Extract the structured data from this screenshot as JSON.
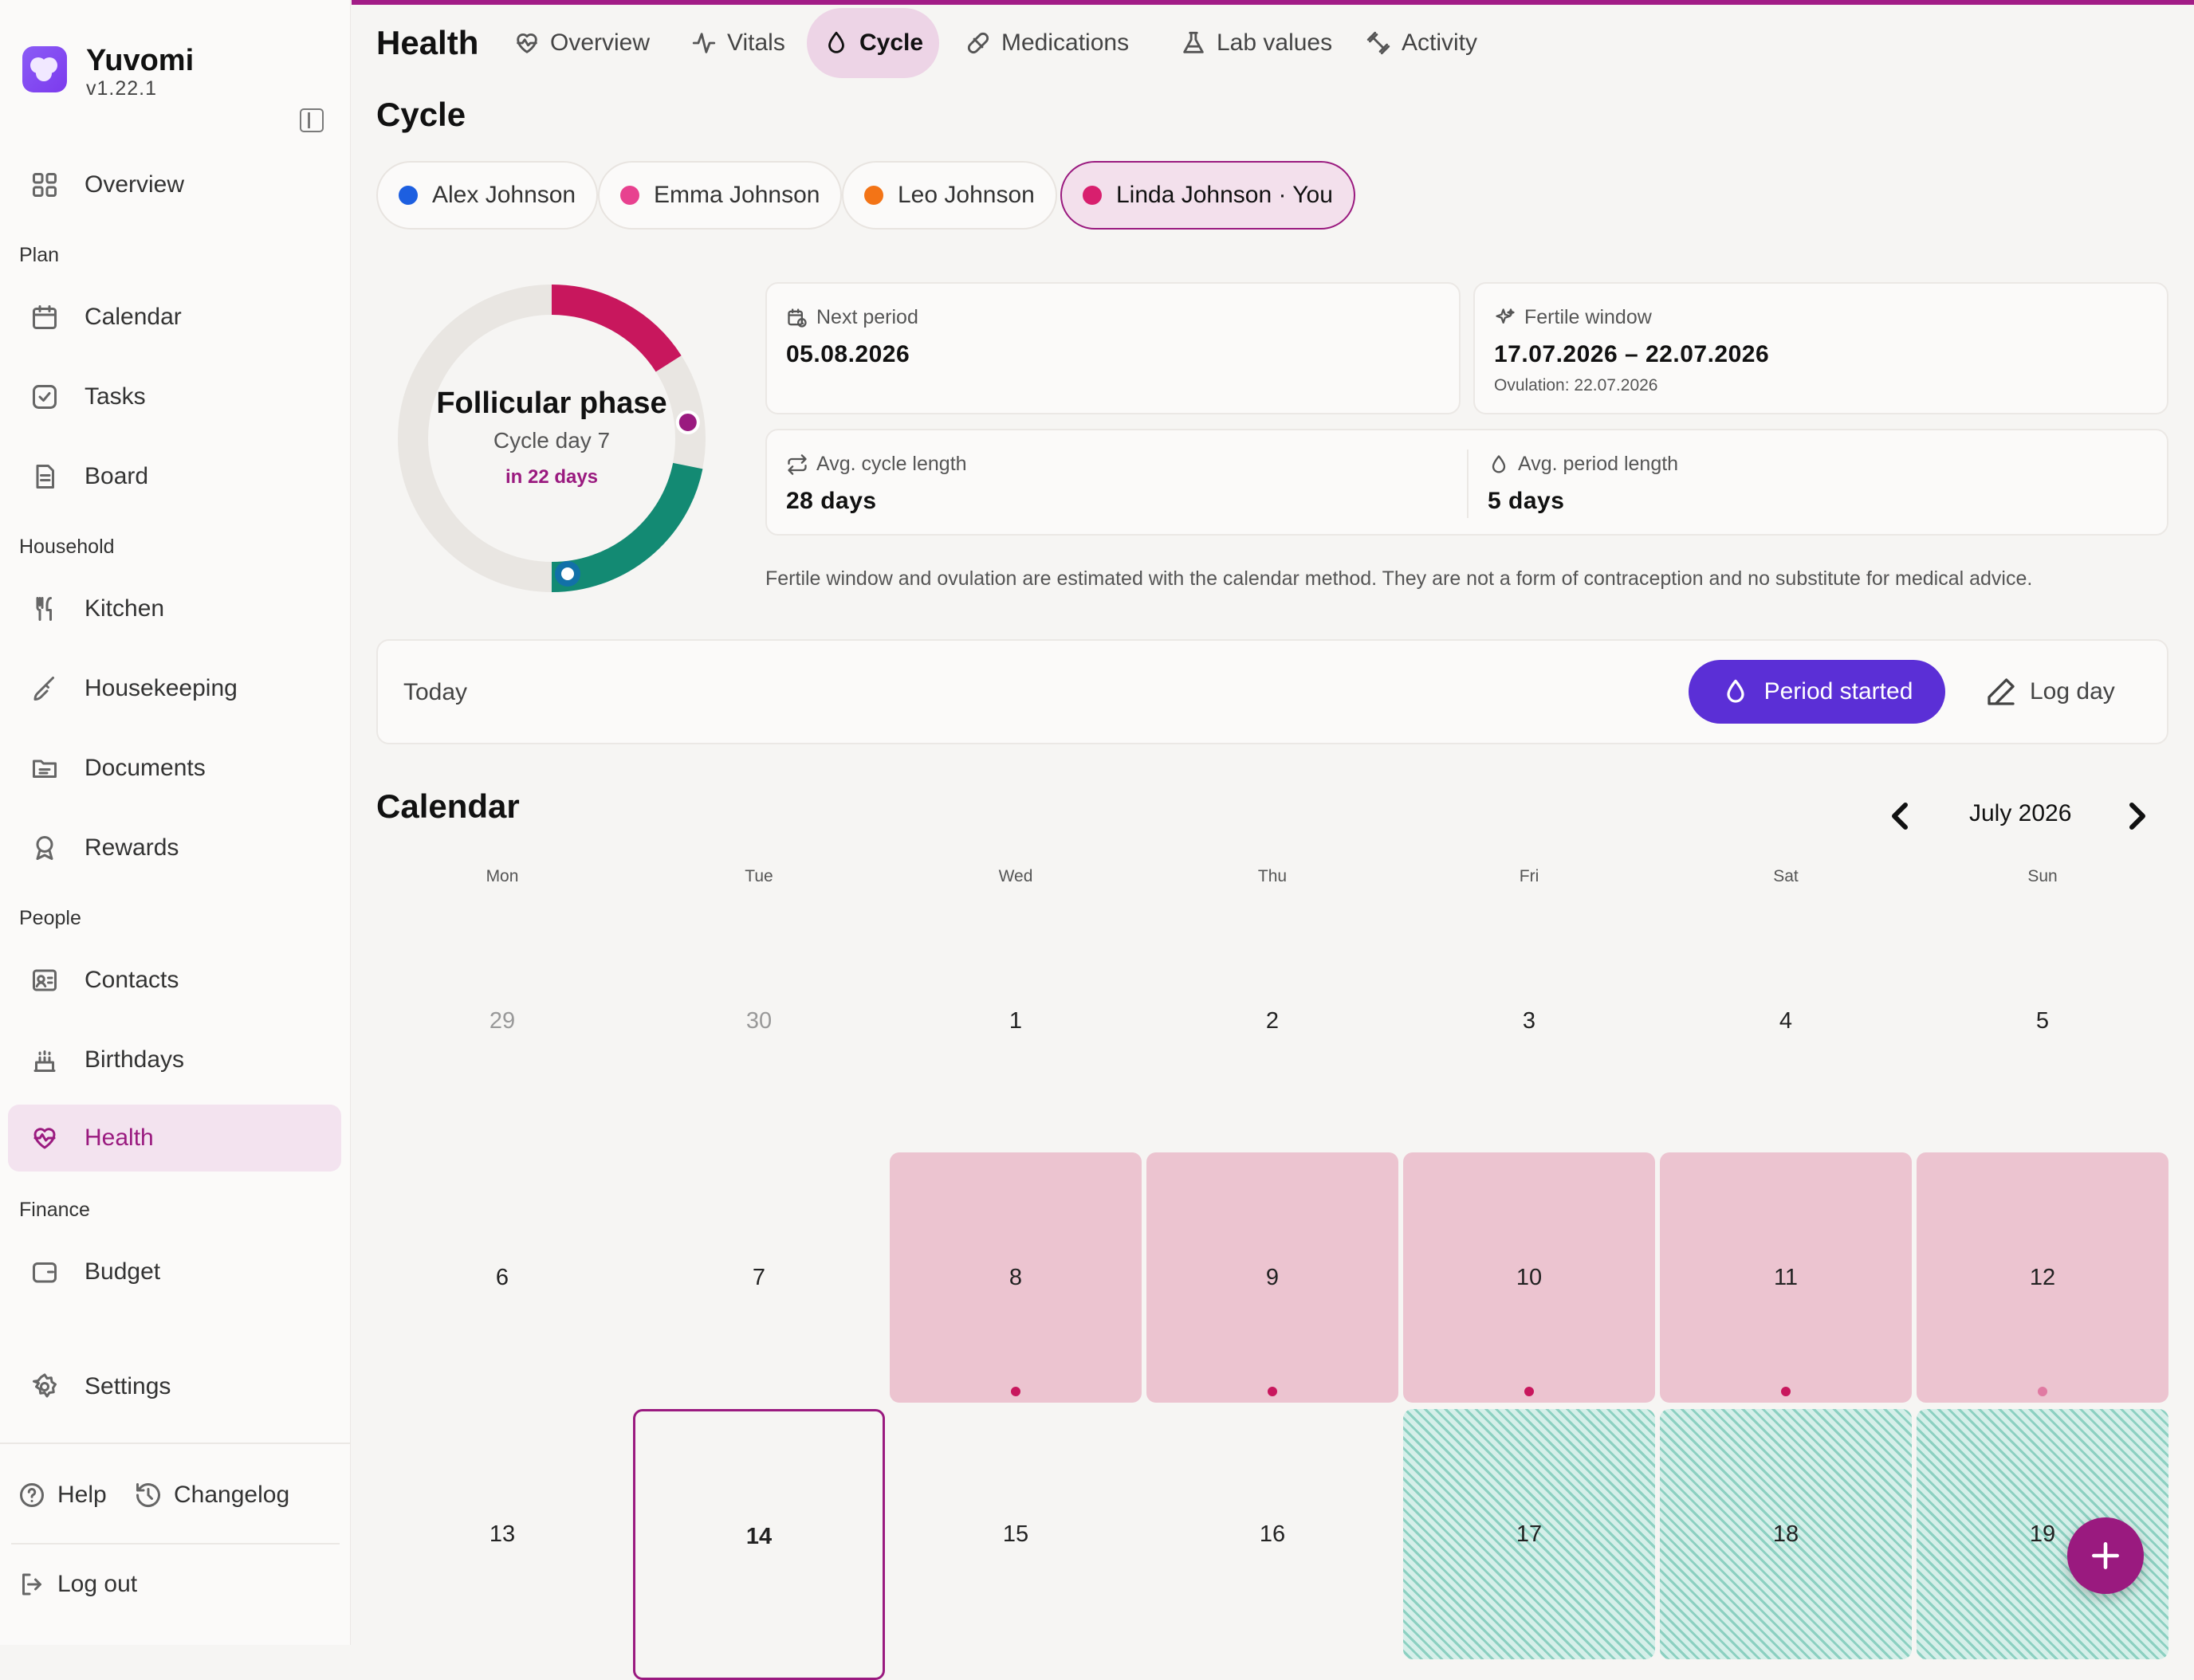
{
  "app": {
    "name": "Yuvomi",
    "version": "v1.22.1"
  },
  "sidebar": {
    "overview": "Overview",
    "sections": {
      "plan": "Plan",
      "household": "Household",
      "people": "People",
      "finance": "Finance"
    },
    "items": {
      "calendar": "Calendar",
      "tasks": "Tasks",
      "board": "Board",
      "kitchen": "Kitchen",
      "housekeeping": "Housekeeping",
      "documents": "Documents",
      "rewards": "Rewards",
      "contacts": "Contacts",
      "birthdays": "Birthdays",
      "health": "Health",
      "budget": "Budget",
      "settings": "Settings"
    },
    "footer": {
      "help": "Help",
      "changelog": "Changelog",
      "logout": "Log out"
    }
  },
  "header": {
    "title": "Health",
    "tabs": [
      {
        "label": "Overview",
        "icon": "heart-pulse-icon"
      },
      {
        "label": "Vitals",
        "icon": "activity-icon"
      },
      {
        "label": "Cycle",
        "icon": "droplet-icon",
        "active": true
      },
      {
        "label": "Medications",
        "icon": "pill-icon"
      },
      {
        "label": "Lab values",
        "icon": "flask-icon"
      },
      {
        "label": "Activity",
        "icon": "dumbbell-icon"
      }
    ]
  },
  "cycle": {
    "title": "Cycle",
    "people": [
      {
        "name": "Alex Johnson",
        "color": "#1d5fe0"
      },
      {
        "name": "Emma Johnson",
        "color": "#e8418f"
      },
      {
        "name": "Leo Johnson",
        "color": "#f37416"
      },
      {
        "name": "Linda Johnson · You",
        "color": "#d81f6e",
        "active": true
      }
    ],
    "ring": {
      "phase": "Follicular phase",
      "cycle_day": "Cycle day 7",
      "countdown": "in 22 days",
      "colors": {
        "period": "#c8175d",
        "fertile": "#138a73",
        "ovulation": "#9a1a7f",
        "today": "#1271a8",
        "track": "#e9e6e2"
      }
    },
    "stats": {
      "next_period": {
        "label": "Next period",
        "value": "05.08.2026"
      },
      "fertile_window": {
        "label": "Fertile window",
        "value": "17.07.2026 – 22.07.2026",
        "sub": "Ovulation: 22.07.2026"
      },
      "avg_cycle": {
        "label": "Avg. cycle length",
        "value": "28 days"
      },
      "avg_period": {
        "label": "Avg. period length",
        "value": "5 days"
      }
    },
    "disclaimer": "Fertile window and ovulation are estimated with the calendar method. They are not a form of contraception and no substitute for medical advice."
  },
  "today": {
    "label": "Today",
    "period_button": "Period started",
    "log_button": "Log day"
  },
  "calendar": {
    "title": "Calendar",
    "month": "July 2026",
    "weekdays": [
      "Mon",
      "Tue",
      "Wed",
      "Thu",
      "Fri",
      "Sat",
      "Sun"
    ],
    "weeks": [
      [
        {
          "d": "29",
          "muted": true
        },
        {
          "d": "30",
          "muted": true
        },
        {
          "d": "1"
        },
        {
          "d": "2"
        },
        {
          "d": "3"
        },
        {
          "d": "4"
        },
        {
          "d": "5"
        }
      ],
      [
        {
          "d": "6"
        },
        {
          "d": "7"
        },
        {
          "d": "8",
          "type": "period"
        },
        {
          "d": "9",
          "type": "period"
        },
        {
          "d": "10",
          "type": "period"
        },
        {
          "d": "11",
          "type": "period"
        },
        {
          "d": "12",
          "type": "period",
          "dot_faint": true
        }
      ],
      [
        {
          "d": "13"
        },
        {
          "d": "14",
          "today": true
        },
        {
          "d": "15"
        },
        {
          "d": "16"
        },
        {
          "d": "17",
          "type": "fertile"
        },
        {
          "d": "18",
          "type": "fertile"
        },
        {
          "d": "19",
          "type": "fertile"
        }
      ]
    ]
  },
  "fab": {
    "icon": "plus-icon",
    "color": "#9a1a7f"
  }
}
